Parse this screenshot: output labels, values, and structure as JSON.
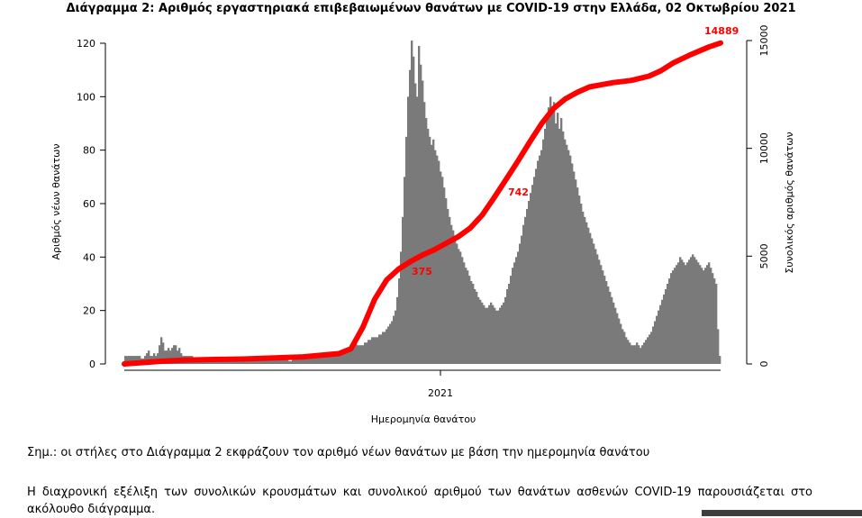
{
  "chart_data": {
    "type": "bar",
    "title": "Διάγραμμα 2: Αριθμός εργαστηριακά επιβεβαιωμένων θανάτων με COVID-19 στην Ελλάδα, 02 Οκτωβρίου 2021",
    "xlabel": "Ημερομηνία θανάτου",
    "ylabel": "Αριθμός νέων θανάτων",
    "y2label": "Συνολικός αριθμός θανάτων",
    "x_tick_labels": [
      "2021"
    ],
    "ylim": [
      0,
      120
    ],
    "y_ticks": [
      "0",
      "20",
      "40",
      "60",
      "80",
      "100",
      "120"
    ],
    "y2lim": [
      0,
      15000
    ],
    "y2_ticks": [
      "0",
      "5000",
      "10000",
      "15000"
    ],
    "grid": false,
    "bar_color": "#7a7a7a",
    "line_color": "#ff0000",
    "series": [
      {
        "name": "Νέοι θάνατοι",
        "kind": "bar",
        "axis": "left",
        "values": [
          3,
          3,
          3,
          3,
          3,
          3,
          3,
          3,
          3,
          2,
          2,
          3,
          4,
          5,
          3,
          3,
          4,
          3,
          4,
          7,
          10,
          8,
          5,
          5,
          6,
          5,
          6,
          7,
          7,
          5,
          6,
          4,
          3,
          3,
          3,
          3,
          3,
          3,
          2,
          2,
          2,
          2,
          2,
          2,
          2,
          2,
          2,
          2,
          2,
          2,
          2,
          2,
          2,
          2,
          1,
          1,
          1,
          2,
          1,
          1,
          1,
          2,
          2,
          2,
          1,
          1,
          1,
          2,
          2,
          2,
          1,
          2,
          2,
          2,
          2,
          2,
          2,
          2,
          2,
          2,
          2,
          2,
          2,
          2,
          2,
          2,
          2,
          2,
          2,
          2,
          2,
          1,
          1,
          2,
          2,
          2,
          2,
          3,
          3,
          2,
          2,
          2,
          2,
          3,
          3,
          3,
          3,
          3,
          3,
          3,
          3,
          3,
          3,
          4,
          4,
          4,
          4,
          4,
          4,
          4,
          5,
          5,
          5,
          6,
          6,
          6,
          7,
          8,
          8,
          7,
          7,
          7,
          7,
          8,
          8,
          9,
          9,
          10,
          10,
          10,
          10,
          11,
          11,
          12,
          12,
          13,
          14,
          15,
          16,
          18,
          20,
          25,
          32,
          42,
          55,
          70,
          85,
          100,
          110,
          121,
          115,
          105,
          100,
          119,
          112,
          106,
          98,
          92,
          88,
          85,
          82,
          84,
          80,
          78,
          76,
          72,
          70,
          66,
          62,
          58,
          55,
          52,
          50,
          48,
          45,
          43,
          42,
          40,
          38,
          36,
          35,
          33,
          31,
          30,
          28,
          27,
          25,
          24,
          23,
          22,
          21,
          21,
          22,
          23,
          22,
          21,
          20,
          20,
          21,
          22,
          23,
          25,
          28,
          30,
          33,
          36,
          38,
          40,
          42,
          45,
          48,
          52,
          55,
          58,
          61,
          64,
          67,
          70,
          73,
          76,
          78,
          80,
          84,
          88,
          92,
          96,
          100,
          95,
          98,
          90,
          94,
          88,
          92,
          87,
          84,
          82,
          80,
          78,
          75,
          72,
          69,
          66,
          63,
          60,
          57,
          55,
          53,
          51,
          49,
          47,
          45,
          43,
          41,
          39,
          37,
          35,
          33,
          31,
          29,
          27,
          25,
          23,
          21,
          19,
          17,
          15,
          13,
          12,
          10,
          9,
          8,
          7,
          7,
          7,
          8,
          7,
          6,
          7,
          8,
          9,
          10,
          11,
          12,
          14,
          16,
          18,
          20,
          22,
          24,
          26,
          28,
          30,
          32,
          34,
          35,
          36,
          37,
          38,
          40,
          39,
          38,
          37,
          38,
          39,
          40,
          41,
          40,
          39,
          38,
          37,
          36,
          35,
          36,
          37,
          38,
          36,
          34,
          32,
          30,
          13,
          3
        ]
      },
      {
        "name": "Συνολικοί θάνατοι",
        "kind": "line",
        "axis": "right",
        "x": [
          0,
          0.06,
          0.1,
          0.15,
          0.2,
          0.3,
          0.36,
          0.38,
          0.4,
          0.42,
          0.44,
          0.46,
          0.48,
          0.5,
          0.52,
          0.54,
          0.56,
          0.58,
          0.6,
          0.62,
          0.64,
          0.66,
          0.68,
          0.7,
          0.72,
          0.74,
          0.76,
          0.78,
          0.8,
          0.82,
          0.85,
          0.88,
          0.9,
          0.92,
          0.95,
          0.98,
          1
        ],
        "values": [
          0,
          120,
          180,
          210,
          230,
          330,
          480,
          700,
          1700,
          3000,
          3900,
          4400,
          4750,
          5050,
          5300,
          5600,
          5900,
          6300,
          6900,
          7700,
          8550,
          9400,
          10300,
          11150,
          11850,
          12300,
          12600,
          12850,
          12950,
          13050,
          13150,
          13350,
          13600,
          13950,
          14350,
          14700,
          14889
        ]
      }
    ],
    "annotations": [
      "375",
      "742",
      "14889"
    ]
  },
  "notes": {
    "note_1": "Σημ.: οι στήλες στο Διάγραμμα 2 εκφράζουν τον αριθμό νέων θανάτων με βάση την ημερομηνία θανάτου",
    "note_2": "Η διαχρονική εξέλιξη των συνολικών κρουσμάτων και συνολικού αριθμού των θανάτων ασθενών COVID-19 παρουσιάζεται στο ακόλουθο διάγραμμα."
  }
}
